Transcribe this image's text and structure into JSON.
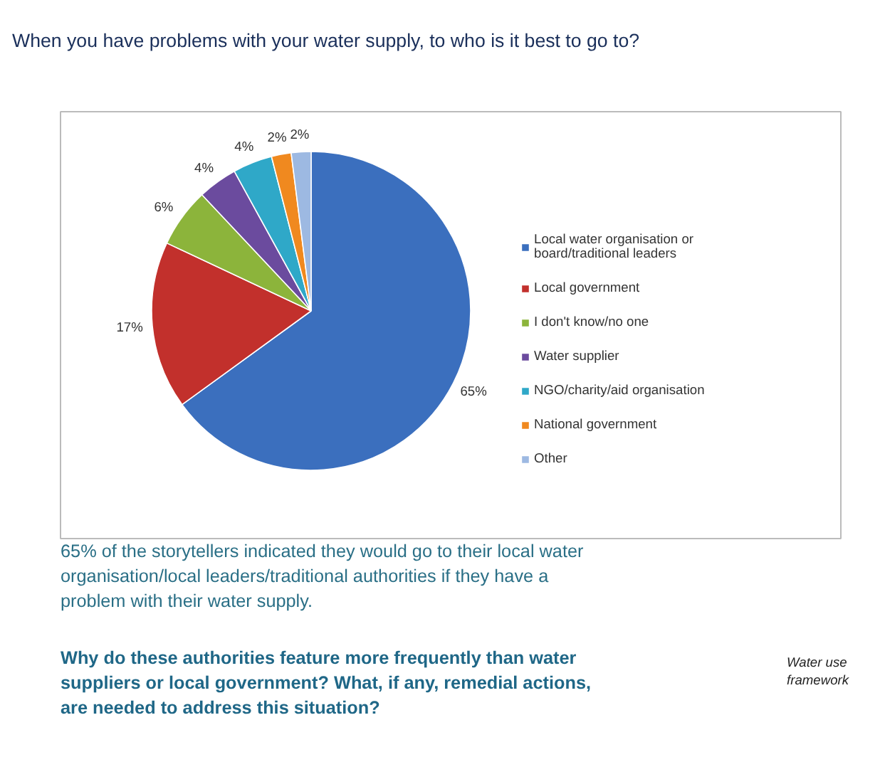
{
  "chart_data": {
    "type": "pie",
    "title": "When you have problems with your water supply, to who is it best to go to?",
    "categories": [
      "Local water organisation or board/traditional leaders",
      "Local government",
      "I don't know/no one",
      "Water supplier",
      "NGO/charity/aid organisation",
      "National government",
      "Other"
    ],
    "values": [
      65,
      17,
      6,
      4,
      4,
      2,
      2
    ],
    "value_labels": [
      "65%",
      "17%",
      "6%",
      "4%",
      "4%",
      "2%",
      "2%"
    ],
    "colors": [
      "#3b6fbe",
      "#c2302c",
      "#8cb43b",
      "#6b4b9e",
      "#2fa8c8",
      "#f0891f",
      "#9db9e2"
    ],
    "legend": "right",
    "annotations": [
      "65% of the storytellers indicated they would go to their local water organisation/local leaders/traditional authorities if they have a problem with their water supply.",
      "Why do these authorities feature more frequently than water suppliers or local government? What, if any, remedial actions, are needed to address this situation?",
      "Water use framework"
    ]
  }
}
